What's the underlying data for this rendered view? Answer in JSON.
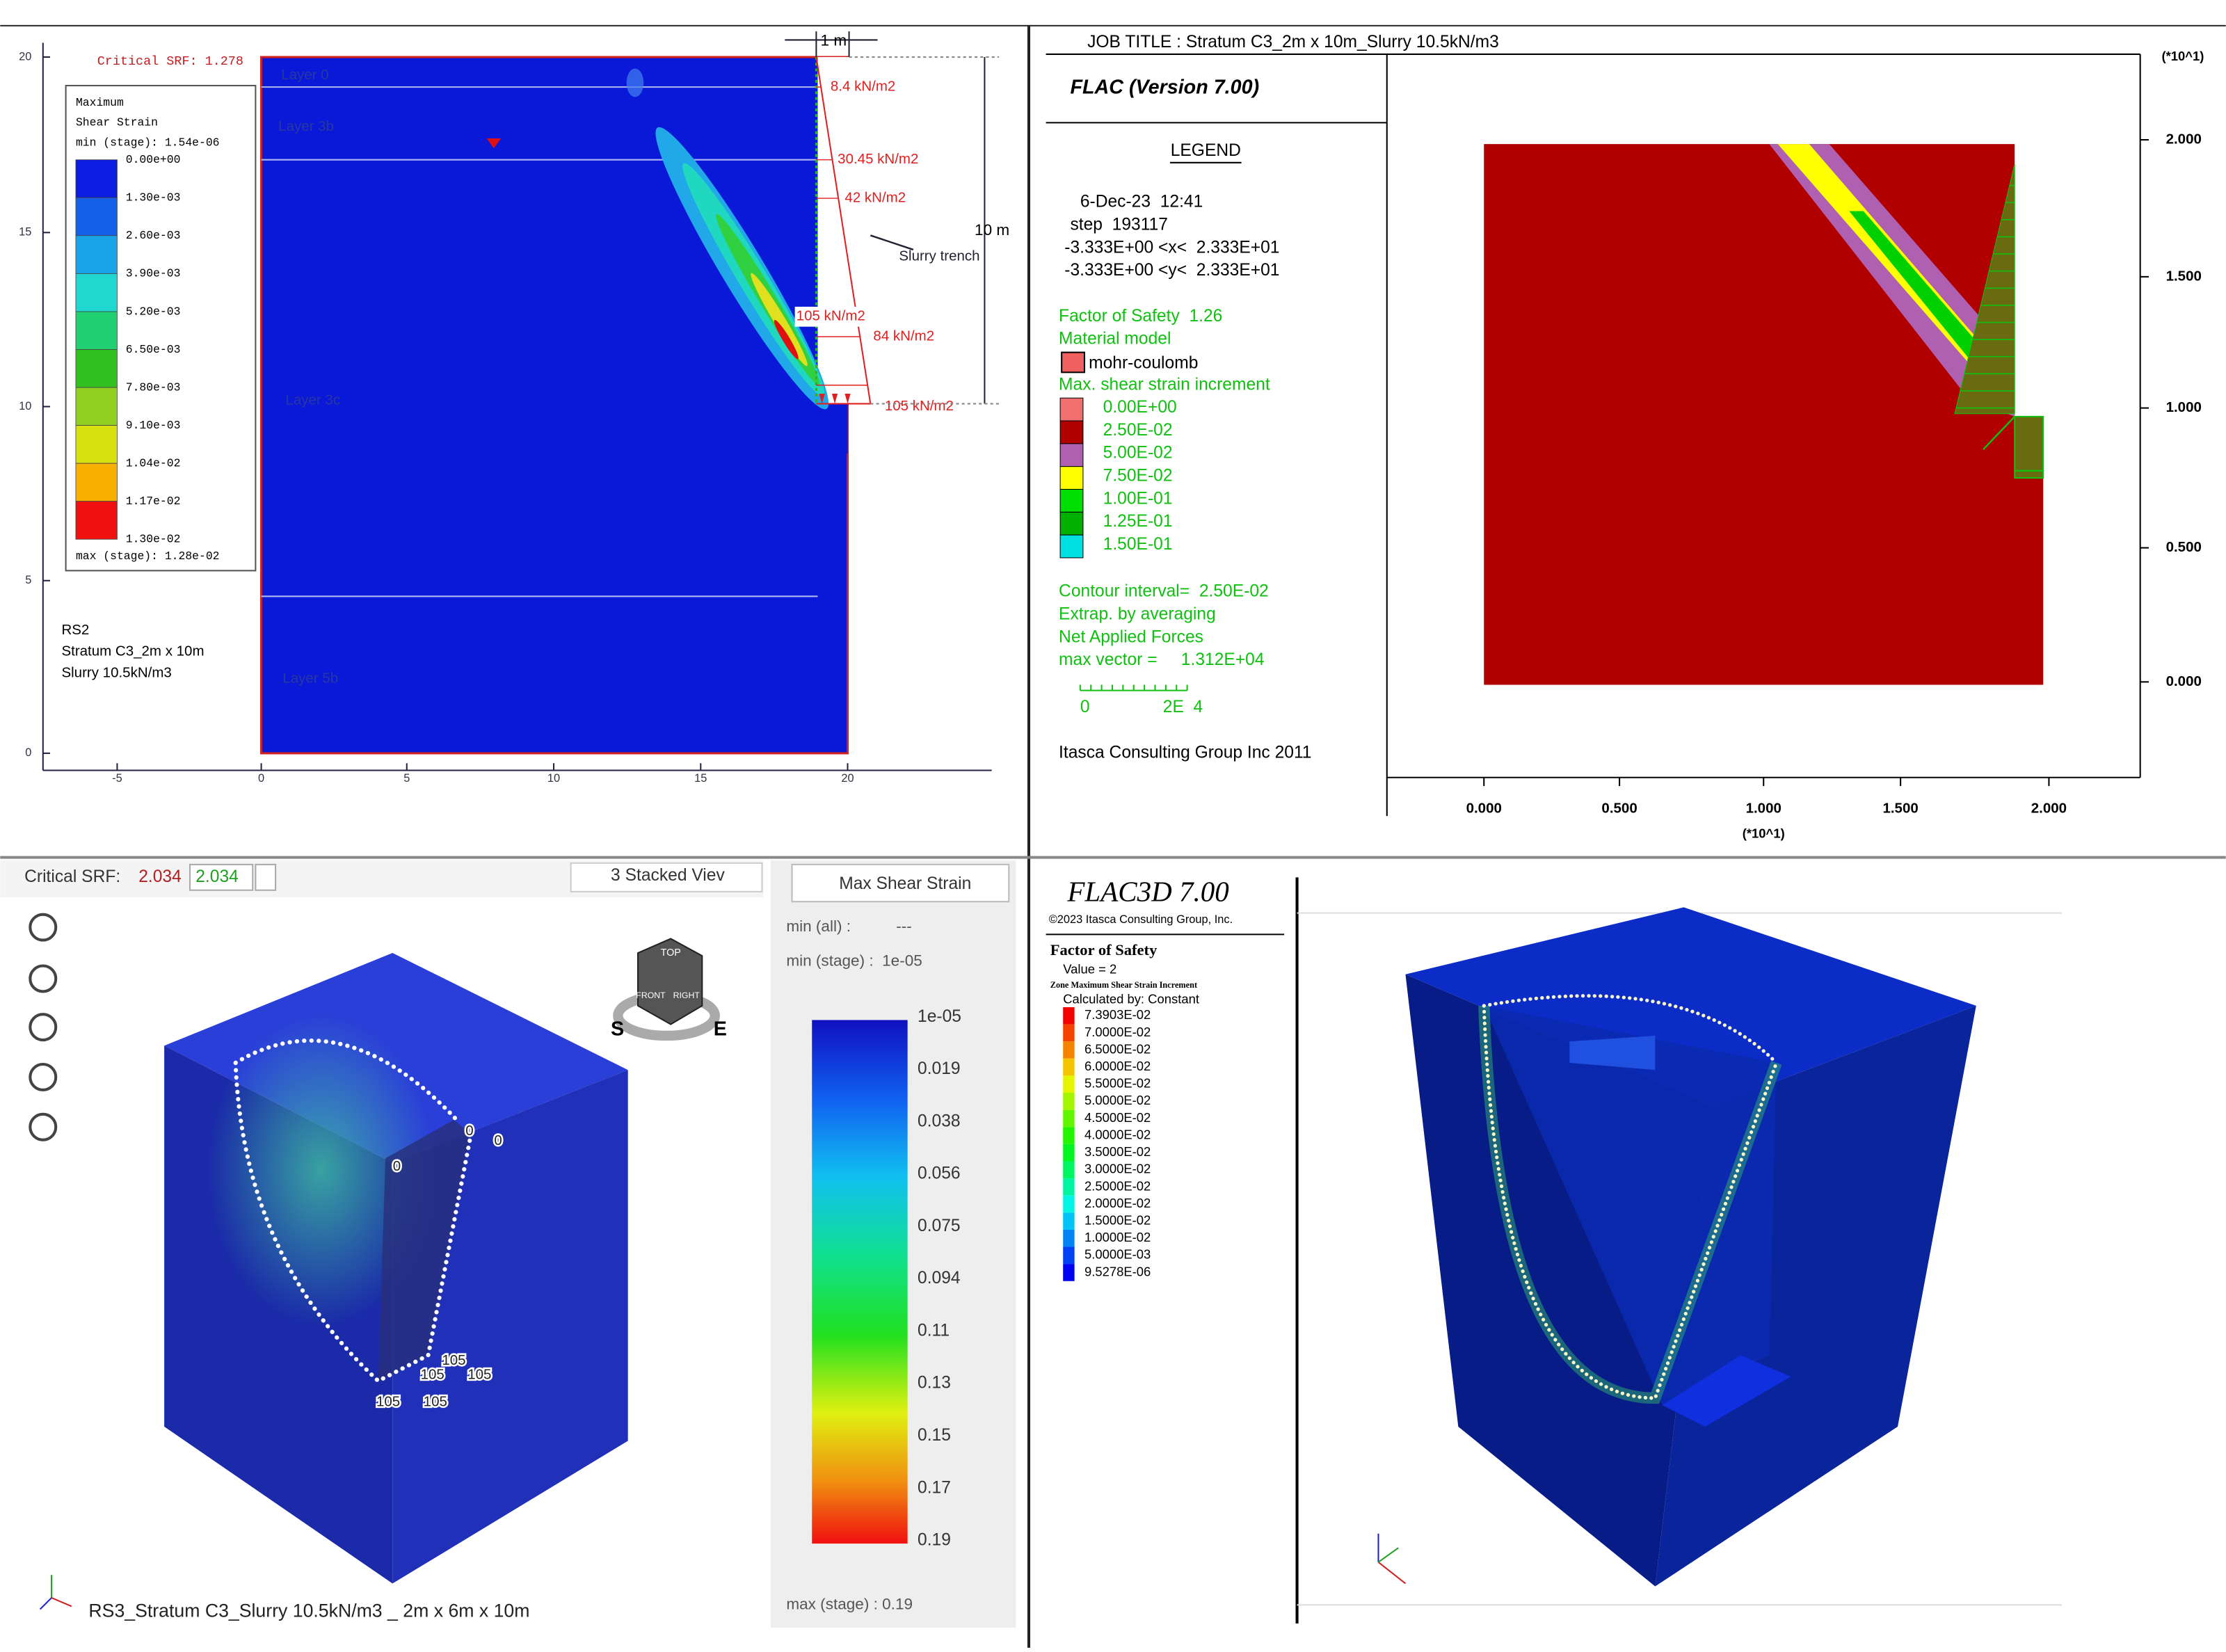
{
  "rs2": {
    "critical_srf": "Critical SRF: 1.278",
    "legend_title": [
      "Maximum",
      "Shear Strain"
    ],
    "legend_min": "min (stage): 1.54e-06",
    "legend_levels": [
      "0.00e+00",
      "1.30e-03",
      "2.60e-03",
      "3.90e-03",
      "5.20e-03",
      "6.50e-03",
      "7.80e-03",
      "9.10e-03",
      "1.04e-02",
      "1.17e-02",
      "1.30e-02"
    ],
    "legend_max": "max (stage): 1.28e-02",
    "layers": [
      "Layer 0",
      "Layer 3b",
      "Layer 3c",
      "Layer 5b"
    ],
    "loads": [
      "8.4 kN/m2",
      "30.45 kN/m2",
      "42 kN/m2",
      "105 kN/m2",
      "84 kN/m2",
      "105 kN/m2"
    ],
    "width_dim": "1 m",
    "depth_dim": "10 m",
    "trench_label": "Slurry trench",
    "info": [
      "RS2",
      "Stratum C3_2m x 10m",
      "Slurry 10.5kN/m3"
    ],
    "y_ticks": [
      "20",
      "15",
      "10",
      "5",
      "0"
    ],
    "x_ticks": [
      "-5",
      "0",
      "5",
      "10",
      "15",
      "20"
    ]
  },
  "flac": {
    "job_title": "JOB TITLE : Stratum C3_2m x 10m_Slurry 10.5kN/m3",
    "version": "FLAC (Version 7.00)",
    "legend_heading": "LEGEND",
    "run_info": [
      "6-Dec-23  12:41",
      "step  193117",
      "-3.333E+00 <x<  2.333E+01",
      "-3.333E+00 <y<  2.333E+01"
    ],
    "factor_of_safety": "Factor of Safety  1.26",
    "material_heading": "Material model",
    "material": "mohr-coulomb",
    "strain_heading": "Max. shear strain increment",
    "strain_levels": [
      "0.00E+00",
      "2.50E-02",
      "5.00E-02",
      "7.50E-02",
      "1.00E-01",
      "1.25E-01",
      "1.50E-01"
    ],
    "notes": [
      "Contour interval=  2.50E-02",
      "Extrap. by averaging",
      "Net Applied Forces",
      "max vector =     1.312E+04"
    ],
    "scale_labels": [
      "0",
      "2E  4"
    ],
    "credit": "Itasca Consulting Group Inc 2011",
    "axis_multiplier": [
      "(*10^1)",
      "(*10^1)"
    ],
    "y_ticks": [
      "2.000",
      "1.500",
      "1.000",
      "0.500",
      "0.000"
    ],
    "x_ticks": [
      "0.000",
      "0.500",
      "1.000",
      "1.500",
      "2.000"
    ]
  },
  "rs3": {
    "srf_label": "Critical SRF:",
    "srf_values": [
      "2.034",
      "2.034"
    ],
    "view_button": "3 Stacked Viev",
    "contour_selector": "Max Shear Strain",
    "min_all": "min (all) :",
    "min_all_value": "---",
    "min_stage": "min (stage) :  1e-05",
    "levels": [
      "1e-05",
      "0.019",
      "0.038",
      "0.056",
      "0.075",
      "0.094",
      "0.11",
      "0.13",
      "0.15",
      "0.17",
      "0.19"
    ],
    "max_stage": "max (stage) : 0.19",
    "point_labels": [
      "0",
      "0",
      "0",
      "105",
      "105",
      "105",
      "105",
      "105"
    ],
    "view_cube": [
      "TOP",
      "FRONT",
      "RIGHT",
      "S",
      "E"
    ],
    "caption": "RS3_Stratum C3_Slurry 10.5kN/m3 _ 2m x 6m x 10m"
  },
  "flac3d": {
    "title": "FLAC3D 7.00",
    "copyright": "©2023 Itasca Consulting Group, Inc.",
    "plot_heading": "Factor of Safety",
    "value": "Value = 2",
    "quantity": "Zone Maximum Shear Strain Increment",
    "calc": "Calculated by: Constant",
    "levels": [
      "7.3903E-02",
      "7.0000E-02",
      "6.5000E-02",
      "6.0000E-02",
      "5.5000E-02",
      "5.0000E-02",
      "4.5000E-02",
      "4.0000E-02",
      "3.5000E-02",
      "3.0000E-02",
      "2.5000E-02",
      "2.0000E-02",
      "1.5000E-02",
      "1.0000E-02",
      "5.0000E-03",
      "9.5278E-06"
    ]
  }
}
